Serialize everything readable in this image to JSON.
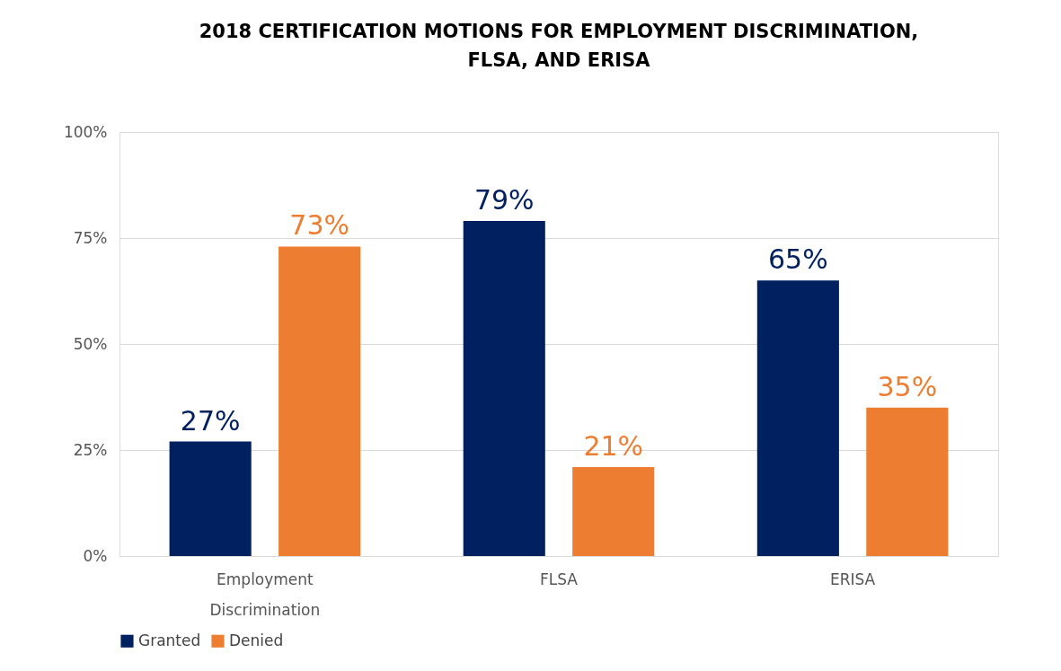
{
  "chart_data": {
    "type": "bar",
    "title": "2018 CERTIFICATION MOTIONS FOR EMPLOYMENT DISCRIMINATION, FLSA, AND ERISA",
    "categories": [
      "Employment Discrimination",
      "FLSA",
      "ERISA"
    ],
    "series": [
      {
        "name": "Granted",
        "color": "#002060",
        "values": [
          27,
          79,
          65
        ],
        "value_labels": [
          "27%",
          "79%",
          "65%"
        ]
      },
      {
        "name": "Denied",
        "color": "#ed7d31",
        "values": [
          73,
          21,
          35
        ],
        "value_labels": [
          "73%",
          "21%",
          "35%"
        ]
      }
    ],
    "ylim": [
      0,
      100
    ],
    "yticks": [
      {
        "value": 0,
        "label": "0%"
      },
      {
        "value": 25,
        "label": "25%"
      },
      {
        "value": 50,
        "label": "50%"
      },
      {
        "value": 75,
        "label": "75%"
      },
      {
        "value": 100,
        "label": "100%"
      }
    ],
    "grid": "y",
    "legend": "bottom"
  }
}
